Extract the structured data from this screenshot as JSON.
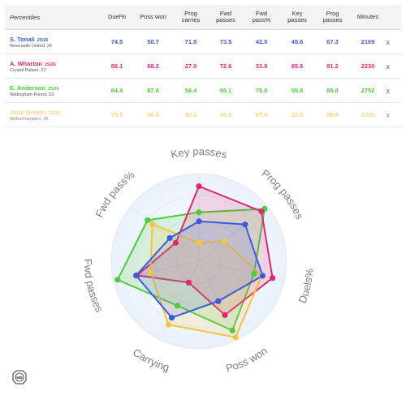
{
  "table": {
    "percentiles_label": "Percentiles",
    "headers": [
      {
        "l1": "Duel%",
        "l2": ""
      },
      {
        "l1": "Poss won",
        "l2": ""
      },
      {
        "l1": "Prog",
        "l2": "carries"
      },
      {
        "l1": "Fwd",
        "l2": "passes"
      },
      {
        "l1": "Fwd",
        "l2": "pass%"
      },
      {
        "l1": "Key",
        "l2": "passes"
      },
      {
        "l1": "Prog",
        "l2": "passes"
      },
      {
        "l1": "Minutes",
        "l2": ""
      }
    ],
    "remove_label": "x"
  },
  "players": [
    {
      "name": "S. Tonali",
      "season": "25/26",
      "club": "Newcastle United, 25",
      "color": "#3d5bd8",
      "faded": false,
      "values": [
        "74.5",
        "50.7",
        "71.5",
        "73.5",
        "42.5",
        "45.6",
        "67.3",
        "2169"
      ]
    },
    {
      "name": "A. Wharton",
      "season": "25/26",
      "club": "Crystal Palace, 22",
      "color": "#e0286e",
      "faded": false,
      "values": [
        "86.1",
        "68.2",
        "27.0",
        "72.6",
        "33.8",
        "85.6",
        "91.2",
        "2230"
      ]
    },
    {
      "name": "E. Anderson",
      "season": "25/26",
      "club": "Nottingham Forest, 23",
      "color": "#4ccd3b",
      "faded": false,
      "values": [
        "64.4",
        "87.8",
        "56.4",
        "95.1",
        "75.0",
        "55.8",
        "95.8",
        "2752"
      ]
    },
    {
      "name": "João Gomes",
      "season": "25/26",
      "club": "Wolverhampton, 25",
      "color": "#f7c344",
      "faded": true,
      "values": [
        "73.5",
        "96.4",
        "80.3",
        "56.6",
        "67.9",
        "21.0",
        "36.9",
        "2336"
      ]
    }
  ],
  "chart_data": {
    "type": "radar",
    "axes": [
      "Key passes",
      "Prog passes",
      "Duels%",
      "Poss won",
      "Carrying",
      "Fwd passes",
      "Fwd pass%"
    ],
    "range": [
      0,
      100
    ],
    "series": [
      {
        "name": "S. Tonali",
        "color": "#3d5bd8",
        "values": [
          45.6,
          67.3,
          74.5,
          50.7,
          71.5,
          73.5,
          42.5
        ]
      },
      {
        "name": "A. Wharton",
        "color": "#e0286e",
        "values": [
          85.6,
          91.2,
          86.1,
          68.2,
          27.0,
          72.6,
          33.8
        ]
      },
      {
        "name": "E. Anderson",
        "color": "#4ccd3b",
        "values": [
          55.8,
          95.8,
          64.4,
          87.8,
          56.4,
          95.1,
          75.0
        ]
      },
      {
        "name": "João Gomes",
        "color": "#f7c344",
        "values": [
          21.0,
          36.9,
          73.5,
          96.4,
          80.3,
          56.6,
          67.9
        ]
      }
    ]
  },
  "logo": {
    "text": "MB"
  }
}
